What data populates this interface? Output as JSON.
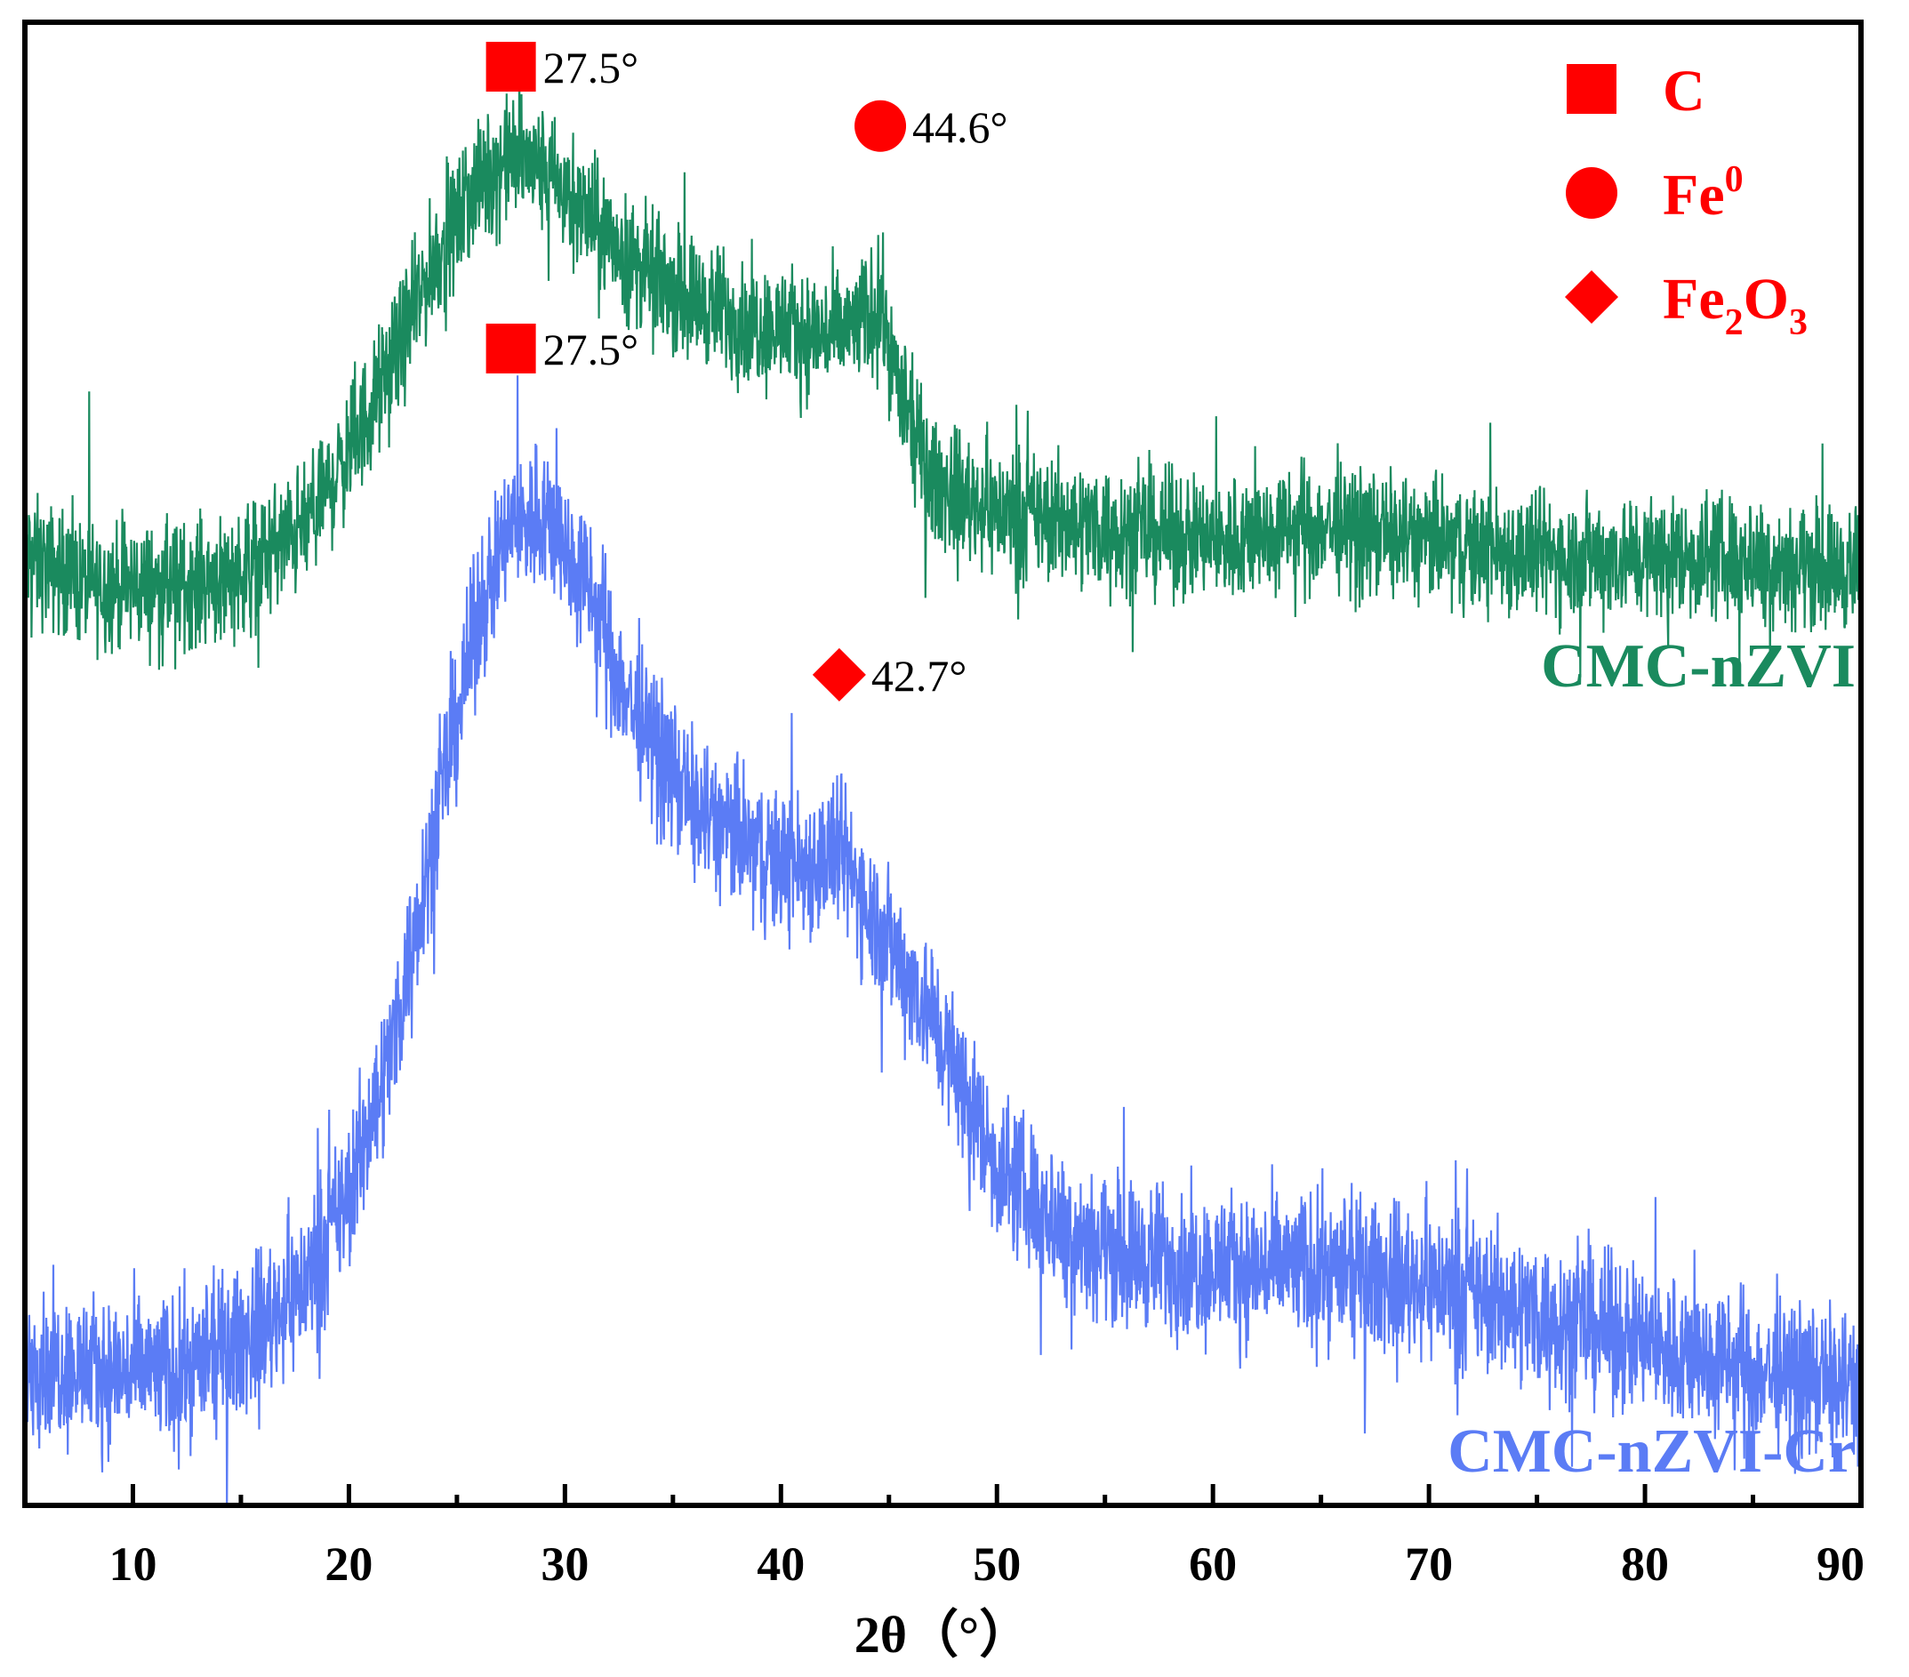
{
  "chart_data": {
    "type": "line",
    "title": "",
    "xlabel": "2θ（°）",
    "ylabel": "",
    "xlim": [
      5,
      90
    ],
    "ylim": [
      0,
      100
    ],
    "xticks": [
      10,
      20,
      30,
      40,
      50,
      60,
      70,
      80,
      90
    ],
    "x_minor_step": 5,
    "grid": false,
    "legend_position": "top-right",
    "series": [
      {
        "name": "CMC-nZVI",
        "color": "#1a8a5e",
        "noise_amplitude": 3.2,
        "label_position": "right, below curve end",
        "profile": [
          [
            5,
            64
          ],
          [
            8,
            62
          ],
          [
            12,
            62
          ],
          [
            15,
            63
          ],
          [
            18,
            66
          ],
          [
            20,
            71
          ],
          [
            22,
            77
          ],
          [
            24,
            84
          ],
          [
            26,
            89
          ],
          [
            27.5,
            91
          ],
          [
            29,
            90
          ],
          [
            31,
            87
          ],
          [
            33,
            84
          ],
          [
            35,
            82
          ],
          [
            38,
            80
          ],
          [
            41,
            79
          ],
          [
            43,
            79
          ],
          [
            44.6,
            81
          ],
          [
            45.5,
            75
          ],
          [
            47,
            69
          ],
          [
            50,
            67
          ],
          [
            55,
            66
          ],
          [
            60,
            65
          ],
          [
            65,
            66
          ],
          [
            70,
            65
          ],
          [
            75,
            64
          ],
          [
            80,
            64
          ],
          [
            85,
            64
          ],
          [
            90,
            63
          ]
        ]
      },
      {
        "name": "CMC-nZVI-Cr",
        "color": "#5b7cf5",
        "noise_amplitude": 3.8,
        "label_position": "right, bottom",
        "profile": [
          [
            5,
            10
          ],
          [
            8,
            9
          ],
          [
            12,
            9
          ],
          [
            15,
            11
          ],
          [
            18,
            15
          ],
          [
            20,
            21
          ],
          [
            22,
            31
          ],
          [
            24,
            46
          ],
          [
            26,
            60
          ],
          [
            27.5,
            66
          ],
          [
            29,
            67
          ],
          [
            31,
            62
          ],
          [
            33,
            54
          ],
          [
            36,
            47
          ],
          [
            39,
            44
          ],
          [
            41,
            43
          ],
          [
            42.7,
            44
          ],
          [
            45,
            38
          ],
          [
            47,
            33
          ],
          [
            50,
            23
          ],
          [
            53,
            19
          ],
          [
            56,
            17
          ],
          [
            60,
            16
          ],
          [
            65,
            16
          ],
          [
            70,
            15
          ],
          [
            75,
            13
          ],
          [
            80,
            11
          ],
          [
            85,
            9
          ],
          [
            90,
            8
          ]
        ]
      }
    ],
    "annotations": [
      {
        "series": 0,
        "x": 27.5,
        "marker": "square",
        "label": "27.5°"
      },
      {
        "series": 0,
        "x": 44.6,
        "marker": "circle",
        "label": "44.6°"
      },
      {
        "series": 1,
        "x": 27.5,
        "marker": "square",
        "label": "27.5°"
      },
      {
        "series": 1,
        "x": 42.7,
        "marker": "diamond",
        "label": "42.7°"
      }
    ],
    "legend": [
      {
        "marker": "square",
        "label": "C",
        "sub": "",
        "sup": "",
        "color": "#ff0000"
      },
      {
        "marker": "circle",
        "label": "Fe",
        "sub": "",
        "sup": "0",
        "color": "#ff0000"
      },
      {
        "marker": "diamond",
        "label": "Fe",
        "sub": "2",
        "mid": "O",
        "sub2": "3",
        "sup": "",
        "color": "#ff0000"
      }
    ]
  }
}
